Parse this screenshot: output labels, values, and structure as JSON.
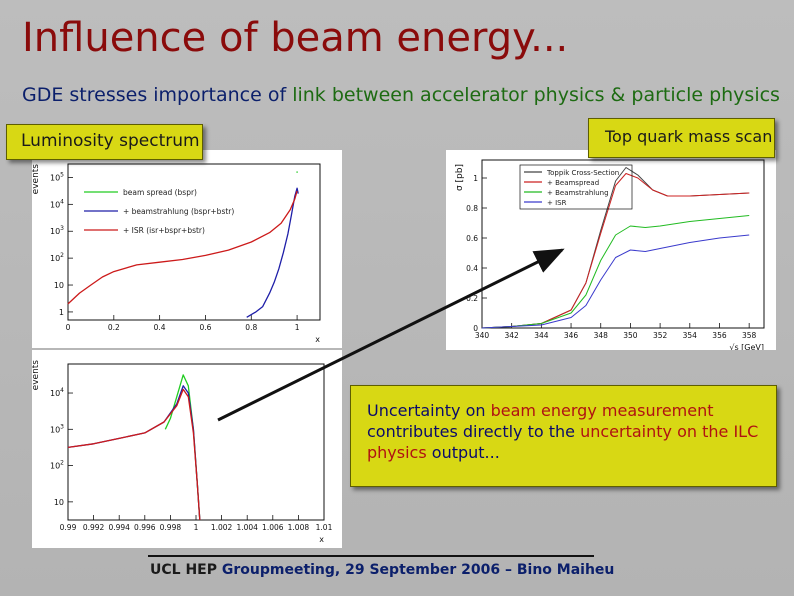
{
  "slide": {
    "title": "Influence of beam energy...",
    "subtitle_a": "GDE stresses importance of ",
    "subtitle_b": "link between accelerator physics & particle physics",
    "lumi_label": "Luminosity spectrum",
    "top_label": "Top quark mass scan",
    "uncertainty": {
      "t1": "Uncertainty on ",
      "t2": "beam energy measurement",
      "t3": " contributes directly to the ",
      "t4": "uncertainty on the",
      "t5": " ILC physics",
      "t6": " output..."
    },
    "footer_a": "UCL HEP",
    "footer_b": " Groupmeeting, 29 September 2006 – Bino Maiheu"
  },
  "colors": {
    "title": "#8a0b0b",
    "text_blue": "#0b1f6b",
    "text_green": "#1d6b12",
    "box_yellow": "#d8d814"
  },
  "chart_data": [
    {
      "type": "line",
      "ylabel": "events",
      "xlabel": "x",
      "x_ticks": [
        "0",
        "0.2",
        "0.4",
        "0.6",
        "0.8",
        "1"
      ],
      "y_ticks": [
        "10^5",
        "10^4",
        "10^3",
        "10^2",
        "10",
        "1"
      ],
      "xlim": [
        0,
        1.1
      ],
      "ylim_log10": [
        -0.3,
        5.5
      ],
      "series": [
        {
          "name": "beam spread (bspr)",
          "color": "#22cc22",
          "points": [
            [
              0.997,
              5.2
            ],
            [
              1.003,
              5.2
            ]
          ]
        },
        {
          "name": "+ beamstrahlung (bspr+bstr)",
          "color": "#1e1ea8",
          "points": [
            [
              0.78,
              -0.2
            ],
            [
              0.82,
              0.0
            ],
            [
              0.85,
              0.2
            ],
            [
              0.88,
              0.7
            ],
            [
              0.9,
              1.1
            ],
            [
              0.92,
              1.6
            ],
            [
              0.94,
              2.2
            ],
            [
              0.96,
              2.9
            ],
            [
              0.975,
              3.6
            ],
            [
              0.99,
              4.3
            ],
            [
              1.0,
              4.6
            ],
            [
              1.005,
              4.4
            ]
          ]
        },
        {
          "name": "+ ISR (isr+bspr+bstr)",
          "color": "#cc1a1a",
          "points": [
            [
              0.0,
              0.3
            ],
            [
              0.05,
              0.7
            ],
            [
              0.1,
              1.0
            ],
            [
              0.15,
              1.3
            ],
            [
              0.2,
              1.5
            ],
            [
              0.3,
              1.75
            ],
            [
              0.4,
              1.85
            ],
            [
              0.5,
              1.95
            ],
            [
              0.6,
              2.1
            ],
            [
              0.7,
              2.3
            ],
            [
              0.8,
              2.6
            ],
            [
              0.88,
              2.95
            ],
            [
              0.93,
              3.3
            ],
            [
              0.97,
              3.8
            ],
            [
              0.99,
              4.2
            ],
            [
              1.0,
              4.5
            ]
          ]
        }
      ]
    },
    {
      "type": "line",
      "ylabel": "events",
      "xlabel": "x",
      "x_ticks": [
        "0.99",
        "0.992",
        "0.994",
        "0.996",
        "0.998",
        "1",
        "1.002",
        "1.004",
        "1.006",
        "1.008",
        "1.01"
      ],
      "y_ticks": [
        "10^4",
        "10^3",
        "10^2",
        "10"
      ],
      "xlim": [
        0.99,
        1.01
      ],
      "ylim_log10": [
        0.5,
        4.8
      ],
      "series": [
        {
          "name": "beam spread (bspr)",
          "color": "#22cc22",
          "points": [
            [
              0.9976,
              3.0
            ],
            [
              0.998,
              3.3
            ],
            [
              0.9985,
              3.9
            ],
            [
              0.999,
              4.5
            ],
            [
              0.9994,
              4.2
            ],
            [
              0.9998,
              3.0
            ],
            [
              1.0001,
              1.5
            ],
            [
              1.0003,
              0.5
            ]
          ]
        },
        {
          "name": "+ beamstrahlung (bspr+bstr)",
          "color": "#1e1ea8",
          "points": [
            [
              0.99,
              2.5
            ],
            [
              0.992,
              2.6
            ],
            [
              0.994,
              2.75
            ],
            [
              0.996,
              2.9
            ],
            [
              0.9975,
              3.2
            ],
            [
              0.9985,
              3.7
            ],
            [
              0.999,
              4.2
            ],
            [
              0.9994,
              4.0
            ],
            [
              0.9998,
              3.0
            ],
            [
              1.0001,
              1.5
            ],
            [
              1.0003,
              0.5
            ]
          ]
        },
        {
          "name": "+ ISR (isr+bspr+bstr)",
          "color": "#cc1a1a",
          "points": [
            [
              0.99,
              2.5
            ],
            [
              0.992,
              2.6
            ],
            [
              0.994,
              2.75
            ],
            [
              0.996,
              2.9
            ],
            [
              0.9975,
              3.2
            ],
            [
              0.9985,
              3.65
            ],
            [
              0.999,
              4.1
            ],
            [
              0.9994,
              3.9
            ],
            [
              0.9998,
              2.9
            ],
            [
              1.0001,
              1.5
            ],
            [
              1.0003,
              0.5
            ]
          ]
        }
      ]
    },
    {
      "type": "line",
      "ylabel": "σ [pb]",
      "xlabel": "√s [GeV]",
      "x_ticks": [
        "340",
        "342",
        "344",
        "346",
        "348",
        "350",
        "352",
        "354",
        "356",
        "358"
      ],
      "y_ticks": [
        "0",
        "0.2",
        "0.4",
        "0.6",
        "0.8",
        "1"
      ],
      "xlim": [
        340,
        359
      ],
      "ylim": [
        0,
        1.12
      ],
      "series": [
        {
          "name": "Toppik Cross-Section",
          "color": "#444444",
          "points": [
            [
              340,
              0.0
            ],
            [
              342,
              0.01
            ],
            [
              344,
              0.03
            ],
            [
              346,
              0.12
            ],
            [
              347,
              0.3
            ],
            [
              348,
              0.65
            ],
            [
              349,
              0.98
            ],
            [
              349.7,
              1.07
            ],
            [
              350.5,
              1.02
            ],
            [
              351.5,
              0.92
            ],
            [
              352.5,
              0.88
            ],
            [
              354,
              0.88
            ],
            [
              356,
              0.89
            ],
            [
              358,
              0.9
            ]
          ]
        },
        {
          "name": "+ Beamspread",
          "color": "#cc2222",
          "points": [
            [
              340,
              0.0
            ],
            [
              342,
              0.01
            ],
            [
              344,
              0.03
            ],
            [
              346,
              0.12
            ],
            [
              347,
              0.3
            ],
            [
              348,
              0.63
            ],
            [
              349,
              0.95
            ],
            [
              349.7,
              1.03
            ],
            [
              350.5,
              1.0
            ],
            [
              351.5,
              0.92
            ],
            [
              352.5,
              0.88
            ],
            [
              354,
              0.88
            ],
            [
              356,
              0.89
            ],
            [
              358,
              0.9
            ]
          ]
        },
        {
          "name": "+ Beamstrahlung",
          "color": "#22bb22",
          "points": [
            [
              340,
              0.0
            ],
            [
              342,
              0.01
            ],
            [
              344,
              0.03
            ],
            [
              346,
              0.1
            ],
            [
              347,
              0.22
            ],
            [
              348,
              0.45
            ],
            [
              349,
              0.62
            ],
            [
              350,
              0.68
            ],
            [
              351,
              0.67
            ],
            [
              352,
              0.68
            ],
            [
              354,
              0.71
            ],
            [
              356,
              0.73
            ],
            [
              358,
              0.75
            ]
          ]
        },
        {
          "name": "+ ISR",
          "color": "#3a3acc",
          "points": [
            [
              340,
              0.0
            ],
            [
              342,
              0.01
            ],
            [
              344,
              0.02
            ],
            [
              346,
              0.07
            ],
            [
              347,
              0.15
            ],
            [
              348,
              0.32
            ],
            [
              349,
              0.47
            ],
            [
              350,
              0.52
            ],
            [
              351,
              0.51
            ],
            [
              352,
              0.53
            ],
            [
              354,
              0.57
            ],
            [
              356,
              0.6
            ],
            [
              358,
              0.62
            ]
          ]
        }
      ]
    }
  ]
}
